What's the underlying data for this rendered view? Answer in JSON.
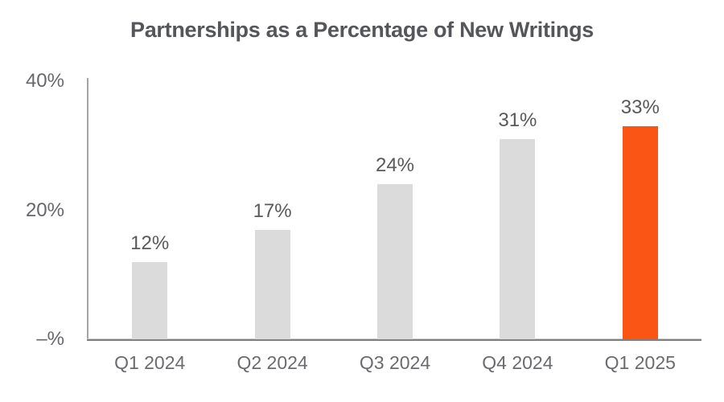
{
  "chart_data": {
    "type": "bar",
    "title": "Partnerships as a Percentage of New Writings",
    "categories": [
      "Q1 2024",
      "Q2 2024",
      "Q3 2024",
      "Q4 2024",
      "Q1 2025"
    ],
    "values": [
      12,
      17,
      24,
      31,
      33
    ],
    "value_labels": [
      "12%",
      "17%",
      "24%",
      "31%",
      "33%"
    ],
    "y_ticks": [
      {
        "label": "40%",
        "value": 40
      },
      {
        "label": "20%",
        "value": 20
      },
      {
        "label": "–%",
        "value": 0
      }
    ],
    "ylim": [
      0,
      40
    ],
    "xlabel": "",
    "ylabel": "",
    "grid": false,
    "legend": false,
    "highlight_index": 4,
    "bar_color": "#DBDBDB",
    "highlight_color": "#FA5514"
  },
  "colors": {
    "title": "#54565A",
    "value_label": "#58595B",
    "tick_label": "#66676B",
    "y_axis_line": "#A4A5A8",
    "x_axis_line": "#7F8083",
    "background": "#FFFFFF"
  }
}
